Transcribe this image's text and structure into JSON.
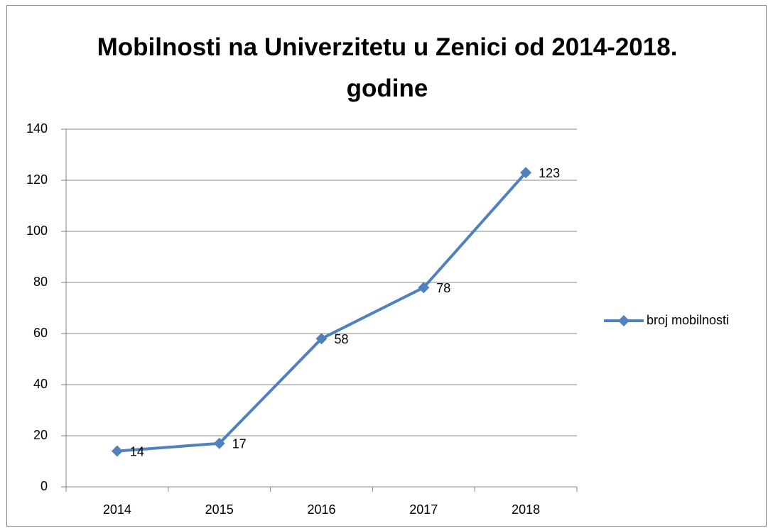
{
  "chart_data": {
    "type": "line",
    "title": "Mobilnosti na Univerzitetu u Zenici od 2014-2018. godine",
    "categories": [
      "2014",
      "2015",
      "2016",
      "2017",
      "2018"
    ],
    "series": [
      {
        "name": "broj mobilnosti",
        "color": "#4f81bd",
        "values": [
          14,
          17,
          58,
          78,
          123
        ]
      }
    ],
    "ylim": [
      0,
      140
    ],
    "yticks": [
      0,
      20,
      40,
      60,
      80,
      100,
      120,
      140
    ],
    "grid": true,
    "legend": "right",
    "data_labels": true
  }
}
